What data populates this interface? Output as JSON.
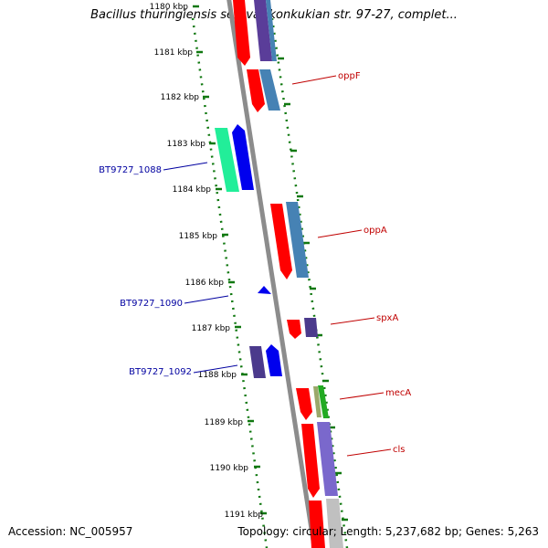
{
  "title": "Bacillus thuringiensis serovar konkukian str. 97-27, complet...",
  "footer": {
    "accession": "Accession: NC_005957",
    "summary": "Topology: circular; Length: 5,237,682 bp; Genes: 5,263"
  },
  "colors": {
    "backbone": "#8c8c8c",
    "tick": "#107810",
    "feature_label": "#c00000",
    "locus_label": "#0000a0"
  },
  "ruler_labels": [
    "1180 kbp",
    "1181 kbp",
    "1182 kbp",
    "1183 kbp",
    "1184 kbp",
    "1185 kbp",
    "1186 kbp",
    "1187 kbp",
    "1188 kbp",
    "1189 kbp",
    "1190 kbp",
    "1191 kbp"
  ],
  "feature_labels": [
    "oppF",
    "oppA",
    "spxA",
    "mecA",
    "cls"
  ],
  "locus_labels": [
    "BT9727_1088",
    "BT9727_1090",
    "BT9727_1092"
  ]
}
